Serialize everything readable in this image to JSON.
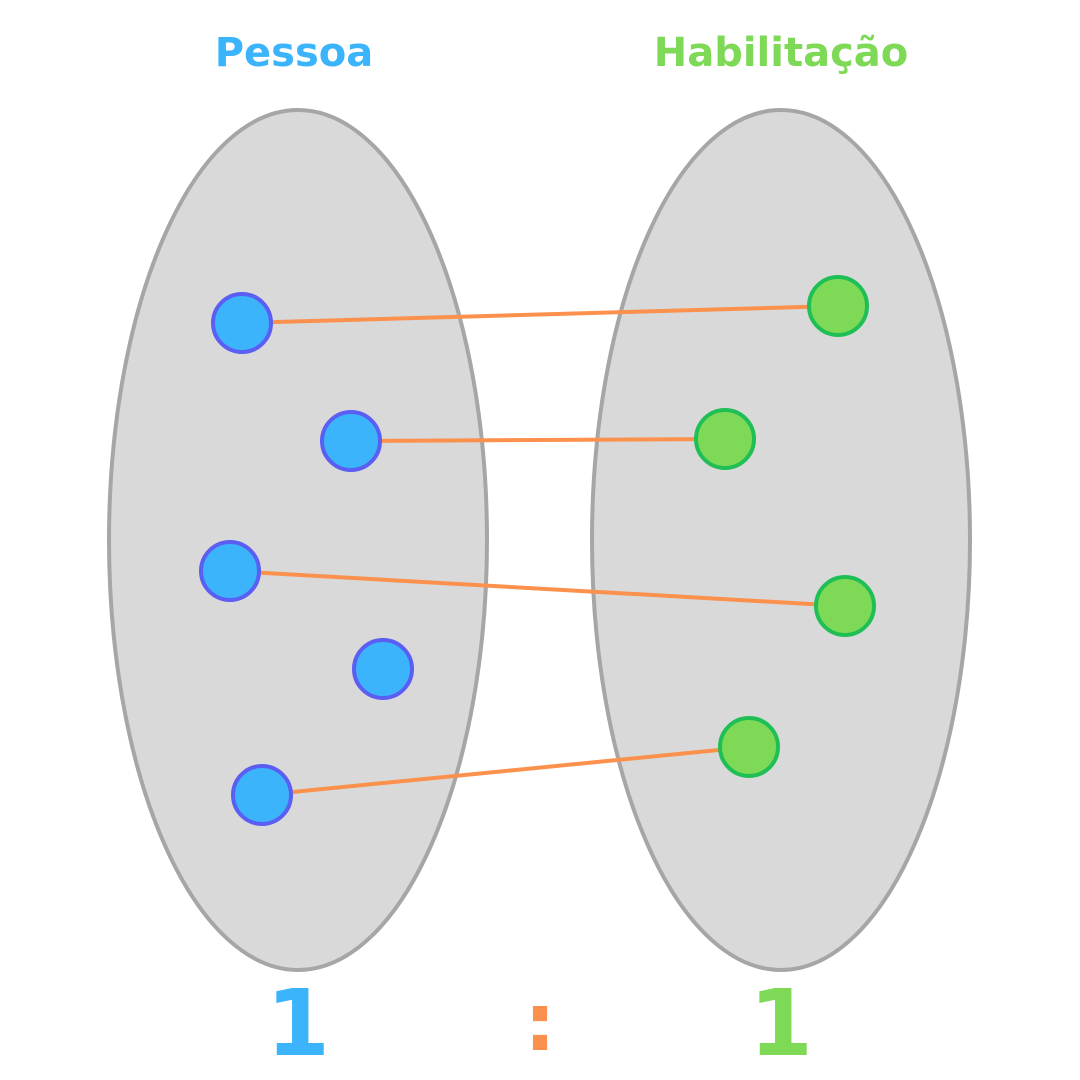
{
  "sets": {
    "left": {
      "label": "Pessoa",
      "color": "#3bb4fb"
    },
    "right": {
      "label": "Habilitação",
      "color": "#7ed957"
    }
  },
  "cardinality": {
    "left": "1",
    "separator": ":",
    "right": "1"
  },
  "colors": {
    "ellipse_fill": "#d9d9d9",
    "ellipse_stroke": "#a6a6a6",
    "left_node_fill": "#3bb4fb",
    "left_node_stroke": "#5b5ef2",
    "right_node_fill": "#7ed957",
    "right_node_stroke": "#1fbf55",
    "connector": "#fb914d"
  },
  "relationship": {
    "type": "one-to-one",
    "left_element_count": 5,
    "right_element_count": 4,
    "links": [
      {
        "from": 1,
        "to": 1
      },
      {
        "from": 2,
        "to": 2
      },
      {
        "from": 3,
        "to": 3
      },
      {
        "from": 5,
        "to": 4
      }
    ]
  }
}
